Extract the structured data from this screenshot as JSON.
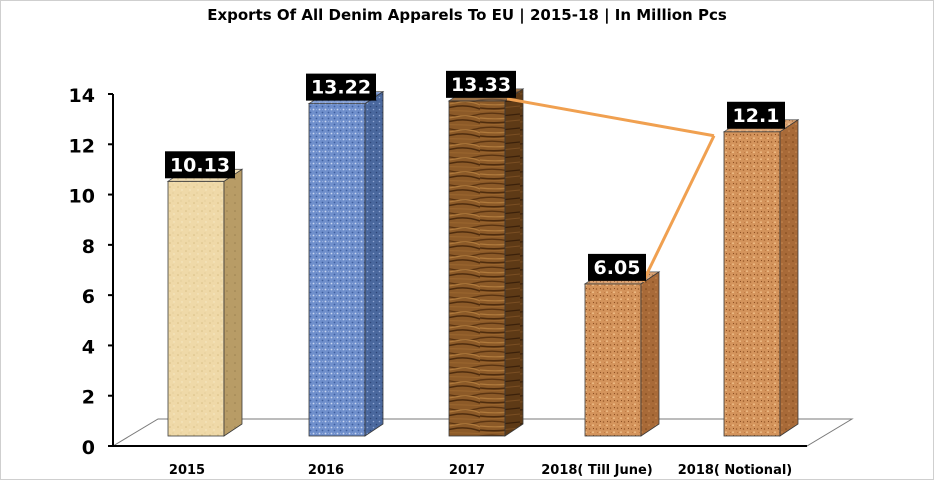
{
  "chart_data": {
    "type": "bar",
    "title": "Exports Of All Denim Apparels To EU | 2015-18 | In Million Pcs",
    "categories": [
      "2015",
      "2016",
      "2017",
      "2018( Till June)",
      "2018( Notional)"
    ],
    "values": [
      10.13,
      13.22,
      13.33,
      6.05,
      12.1
    ],
    "value_labels": [
      "10.13",
      "13.22",
      "13.33",
      "6.05",
      "12.1"
    ],
    "ylim": [
      0,
      14
    ],
    "yticks": [
      0,
      2,
      4,
      6,
      8,
      10,
      12,
      14
    ],
    "xlabel": "",
    "ylabel": "",
    "grid": false,
    "legend": "none",
    "three_d": true,
    "bar_textures": [
      "paper",
      "blue-fabric",
      "wood",
      "cork",
      "cork"
    ],
    "bar_colors": [
      "#ecd6a3",
      "#5f7fc0",
      "#8a5a2a",
      "#d2915a",
      "#d2915a"
    ],
    "connector": {
      "color": "#f0a050",
      "links": [
        [
          2,
          4
        ],
        [
          3,
          4
        ]
      ]
    },
    "label_box_color": "#000000",
    "label_text_color": "#ffffff"
  }
}
